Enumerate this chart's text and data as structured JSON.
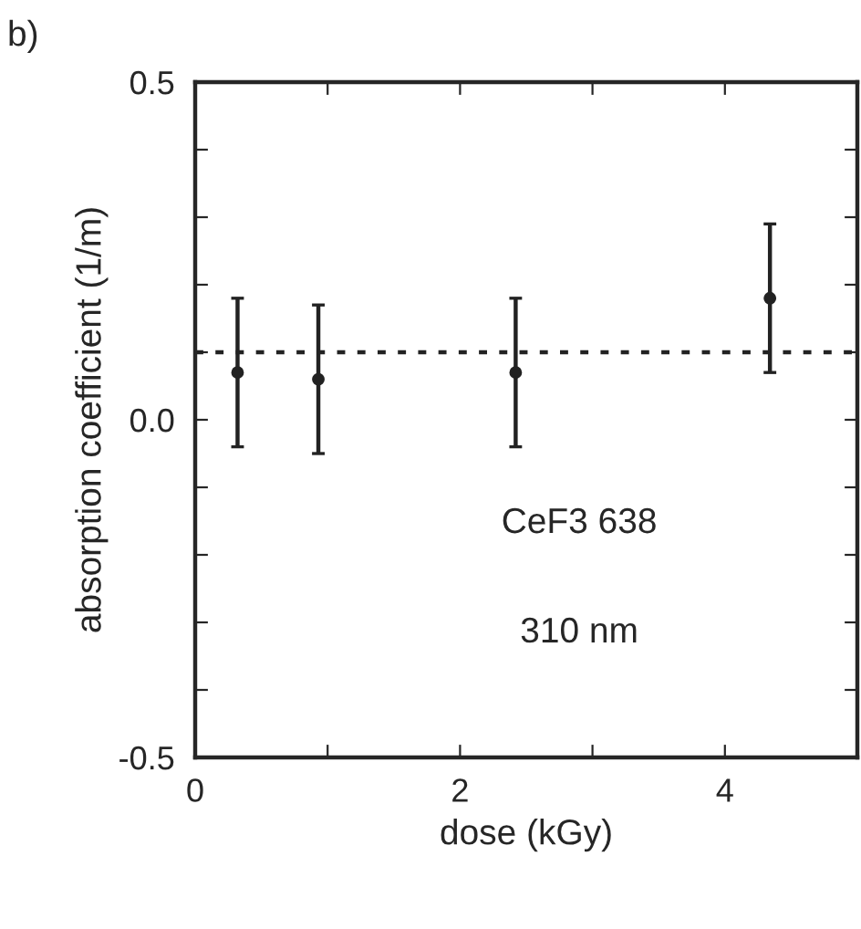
{
  "chart_data": {
    "type": "scatter",
    "xlabel": "dose (kGy)",
    "ylabel": "absorption coefficient (1/m)",
    "x": [
      0.32,
      0.93,
      2.42,
      4.34
    ],
    "series": [
      {
        "color": "#222222",
        "values": [
          0.07,
          0.06,
          0.07,
          0.18
        ],
        "errors": [
          0.11,
          0.11,
          0.11,
          0.11
        ]
      }
    ],
    "marker": "circle",
    "xlim": [
      0,
      5
    ],
    "ylim": [
      -0.5,
      0.5
    ],
    "xticks": [
      0,
      {
        "value": 1,
        "label": null
      },
      2,
      {
        "value": 3,
        "label": null
      },
      4
    ],
    "yticks": [
      {
        "value": -0.5,
        "label": "-0.5"
      },
      {
        "value": -0.4,
        "label": null
      },
      {
        "value": -0.3,
        "label": null
      },
      {
        "value": -0.2,
        "label": null
      },
      {
        "value": -0.1,
        "label": null
      },
      {
        "value": 0.0,
        "label": "0.0"
      },
      {
        "value": 0.1,
        "label": null
      },
      {
        "value": 0.2,
        "label": null
      },
      {
        "value": 0.3,
        "label": null
      },
      {
        "value": 0.4,
        "label": null
      },
      {
        "value": 0.5,
        "label": "0.5"
      }
    ],
    "ref_lines": [
      {
        "axis": "y",
        "value": 0.1,
        "color": "#222222",
        "line_style": "dotted"
      }
    ],
    "annotations": [
      "b)",
      "CeF3 638",
      "310 nm"
    ],
    "grid": false,
    "legend": false
  }
}
